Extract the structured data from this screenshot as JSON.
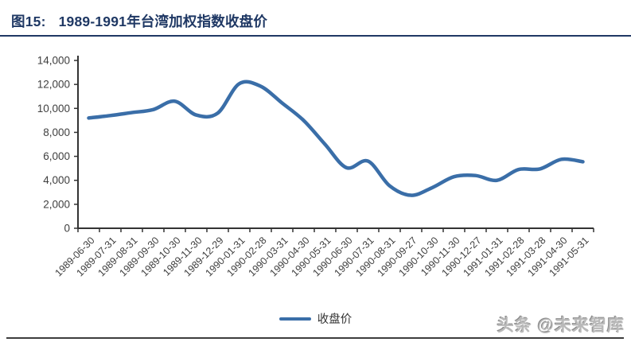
{
  "header": {
    "figure_label": "图15:",
    "title": "1989-1991年台湾加权指数收盘价"
  },
  "legend": {
    "label": "收盘价"
  },
  "watermark": "头条 @未来智库",
  "colors": {
    "title_navy": "#1f3864",
    "series_blue": "#3a6ea8",
    "axis_line": "#333333",
    "tick_text": "#3f3f3f"
  },
  "chart_data": {
    "type": "line",
    "title": "1989-1991年台湾加权指数收盘价",
    "xlabel": "",
    "ylabel": "",
    "ylim": [
      0,
      14000
    ],
    "y_ticks": [
      0,
      2000,
      4000,
      6000,
      8000,
      10000,
      12000,
      14000
    ],
    "grid": false,
    "legend_position": "bottom",
    "categories": [
      "1989-06-30",
      "1989-07-31",
      "1989-08-31",
      "1989-09-30",
      "1989-10-30",
      "1989-11-30",
      "1989-12-29",
      "1990-01-31",
      "1990-02-28",
      "1990-03-31",
      "1990-04-30",
      "1990-05-31",
      "1990-06-30",
      "1990-07-31",
      "1990-08-31",
      "1990-09-27",
      "1990-10-30",
      "1990-11-30",
      "1990-12-27",
      "1991-01-31",
      "1991-02-28",
      "1991-03-28",
      "1991-04-30",
      "1991-05-31"
    ],
    "series": [
      {
        "name": "收盘价",
        "values": [
          9200,
          9400,
          9650,
          9900,
          10600,
          9450,
          9600,
          12050,
          11850,
          10450,
          9000,
          7000,
          5050,
          5600,
          3550,
          2750,
          3400,
          4300,
          4400,
          4000,
          4900,
          4950,
          5750,
          5550
        ]
      }
    ]
  }
}
